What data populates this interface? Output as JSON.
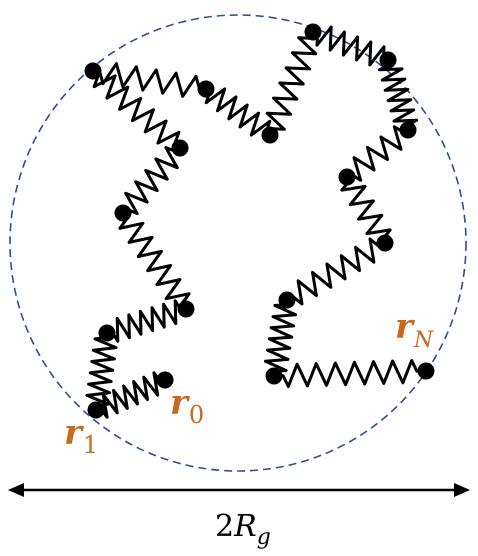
{
  "labels": {
    "r0": {
      "main": "r",
      "sub": "0"
    },
    "r1": {
      "main": "r",
      "sub": "1"
    },
    "rN": {
      "main": "r",
      "sub": "N"
    },
    "diameter": {
      "prefix": "2",
      "symbol": "R",
      "sub": "g"
    }
  },
  "colors": {
    "chain": "#000000",
    "bead": "#000000",
    "circle": "#2f4f8f",
    "label": "#c56a1e",
    "arrow": "#000000"
  }
}
